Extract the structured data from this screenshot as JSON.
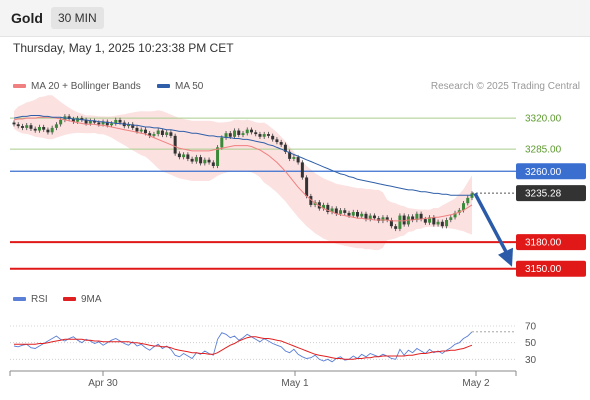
{
  "header": {
    "asset": "Gold",
    "timeframe": "30 MIN"
  },
  "datetime": "Thursday, May 1, 2025 10:23:38 PM CET",
  "legend": {
    "ma20": {
      "label": "MA 20 + Bollinger Bands",
      "color": "#f08080"
    },
    "ma50": {
      "label": "MA 50",
      "color": "#2f5fa8"
    }
  },
  "credit": "Research © 2025 Trading Central",
  "rsi_legend": {
    "rsi": {
      "label": "RSI",
      "color": "#5b7fd6"
    },
    "ma9": {
      "label": "9MA",
      "color": "#e02020"
    }
  },
  "chart_data": [
    {
      "type": "candlestick",
      "ylim": [
        3135,
        3345
      ],
      "current_price": "3235.28",
      "levels": [
        {
          "value": 3320.0,
          "label": "3320.00",
          "style": "resistance-green"
        },
        {
          "value": 3285.0,
          "label": "3285.00",
          "style": "resistance-green"
        },
        {
          "value": 3260.0,
          "label": "3260.00",
          "style": "pivot-blue"
        },
        {
          "value": 3180.0,
          "label": "3180.00",
          "style": "support-red"
        },
        {
          "value": 3150.0,
          "label": "3150.00",
          "style": "support-red"
        }
      ],
      "x_ticks": [
        "Apr 30",
        "May 1",
        "May 2"
      ],
      "forecast_arrow": {
        "from": 3235,
        "to": 3150
      },
      "closes": [
        3313,
        3311,
        3309,
        3312,
        3308,
        3306,
        3310,
        3307,
        3304,
        3309,
        3313,
        3318,
        3322,
        3319,
        3316,
        3320,
        3318,
        3314,
        3317,
        3315,
        3313,
        3316,
        3312,
        3314,
        3318,
        3315,
        3311,
        3313,
        3309,
        3305,
        3307,
        3303,
        3300,
        3302,
        3306,
        3301,
        3304,
        3300,
        3280,
        3276,
        3279,
        3274,
        3271,
        3276,
        3269,
        3273,
        3270,
        3266,
        3287,
        3298,
        3303,
        3299,
        3306,
        3301,
        3303,
        3307,
        3304,
        3302,
        3299,
        3302,
        3300,
        3296,
        3293,
        3290,
        3282,
        3274,
        3276,
        3270,
        3253,
        3232,
        3222,
        3225,
        3218,
        3222,
        3214,
        3218,
        3212,
        3216,
        3213,
        3210,
        3214,
        3209,
        3212,
        3206,
        3210,
        3207,
        3204,
        3208,
        3205,
        3198,
        3195,
        3210,
        3200,
        3209,
        3205,
        3212,
        3206,
        3202,
        3208,
        3200,
        3203,
        3198,
        3205,
        3208,
        3213,
        3216,
        3224,
        3230,
        3235
      ],
      "ma20": [
        3318,
        3319,
        3319,
        3320,
        3320,
        3320,
        3321,
        3321,
        3321,
        3321,
        3320,
        3319,
        3318,
        3317,
        3316,
        3315,
        3314,
        3313,
        3313,
        3313,
        3312,
        3312,
        3311,
        3310,
        3309,
        3308,
        3307,
        3306,
        3305,
        3304,
        3303,
        3302,
        3300,
        3298,
        3296,
        3294,
        3292,
        3290,
        3288,
        3286,
        3285,
        3284,
        3283,
        3283,
        3283,
        3283,
        3283,
        3284,
        3285,
        3286,
        3287,
        3288,
        3289,
        3289,
        3289,
        3289,
        3288,
        3286,
        3284,
        3281,
        3278,
        3274,
        3270,
        3265,
        3260,
        3254,
        3248,
        3242,
        3237,
        3232,
        3228,
        3224,
        3221,
        3218,
        3216,
        3214,
        3212,
        3211,
        3210,
        3209,
        3208,
        3207,
        3207,
        3206,
        3206,
        3205,
        3205,
        3205,
        3205,
        3204,
        3204,
        3204,
        3204,
        3205,
        3205,
        3206,
        3206,
        3207,
        3207,
        3208,
        3208,
        3209,
        3210,
        3211,
        3212,
        3214,
        3216,
        3219,
        3222
      ],
      "ma50": [
        3320,
        3321,
        3322,
        3322,
        3323,
        3323,
        3323,
        3322,
        3322,
        3321,
        3321,
        3321,
        3320,
        3320,
        3319,
        3319,
        3318,
        3318,
        3317,
        3317,
        3316,
        3316,
        3315,
        3315,
        3314,
        3314,
        3313,
        3313,
        3312,
        3312,
        3311,
        3310,
        3310,
        3309,
        3309,
        3308,
        3307,
        3307,
        3306,
        3305,
        3305,
        3304,
        3303,
        3303,
        3302,
        3301,
        3300,
        3300,
        3299,
        3299,
        3298,
        3298,
        3297,
        3297,
        3296,
        3296,
        3295,
        3294,
        3293,
        3292,
        3290,
        3289,
        3287,
        3285,
        3283,
        3281,
        3279,
        3277,
        3275,
        3273,
        3271,
        3269,
        3267,
        3265,
        3263,
        3261,
        3259,
        3257,
        3256,
        3254,
        3253,
        3251,
        3250,
        3249,
        3248,
        3247,
        3246,
        3245,
        3244,
        3243,
        3242,
        3241,
        3240,
        3239,
        3239,
        3238,
        3237,
        3237,
        3236,
        3235,
        3235,
        3234,
        3234,
        3233,
        3233,
        3233,
        3233,
        3233,
        3233
      ]
    },
    {
      "type": "line",
      "series_names": [
        "RSI",
        "9MA"
      ],
      "ylim": [
        22,
        82
      ],
      "y_ticks": [
        "70",
        "50",
        "30"
      ],
      "rsi": [
        46,
        45,
        47,
        48,
        44,
        43,
        46,
        49,
        52,
        55,
        58,
        54,
        52,
        55,
        57,
        53,
        50,
        54,
        52,
        49,
        51,
        47,
        50,
        53,
        55,
        52,
        49,
        47,
        51,
        46,
        48,
        44,
        41,
        45,
        48,
        43,
        46,
        42,
        35,
        33,
        37,
        34,
        31,
        38,
        36,
        40,
        37,
        35,
        54,
        62,
        60,
        56,
        58,
        53,
        56,
        60,
        57,
        54,
        51,
        55,
        52,
        49,
        47,
        45,
        40,
        38,
        42,
        36,
        33,
        31,
        32,
        35,
        30,
        28,
        30,
        27,
        31,
        33,
        29,
        30,
        34,
        31,
        36,
        33,
        37,
        35,
        33,
        36,
        34,
        31,
        30,
        42,
        35,
        41,
        38,
        43,
        40,
        37,
        42,
        38,
        40,
        37,
        41,
        44,
        48,
        50,
        55,
        58,
        63
      ],
      "ma9": [
        48,
        48,
        48,
        48,
        48,
        48,
        49,
        49,
        50,
        51,
        52,
        53,
        54,
        54,
        54,
        54,
        54,
        53,
        53,
        52,
        52,
        51,
        51,
        51,
        51,
        51,
        51,
        51,
        50,
        50,
        49,
        48,
        47,
        46,
        46,
        45,
        45,
        44,
        42,
        41,
        40,
        39,
        38,
        38,
        37,
        37,
        36,
        36,
        38,
        41,
        44,
        47,
        49,
        52,
        54,
        56,
        57,
        57,
        56,
        55,
        55,
        54,
        53,
        52,
        50,
        48,
        46,
        44,
        42,
        40,
        38,
        36,
        35,
        34,
        33,
        32,
        31,
        31,
        30,
        30,
        30,
        31,
        31,
        32,
        32,
        33,
        33,
        34,
        34,
        34,
        34,
        34,
        34,
        35,
        35,
        36,
        37,
        37,
        38,
        39,
        39,
        40,
        40,
        41,
        41,
        42,
        43,
        45,
        47
      ]
    }
  ]
}
